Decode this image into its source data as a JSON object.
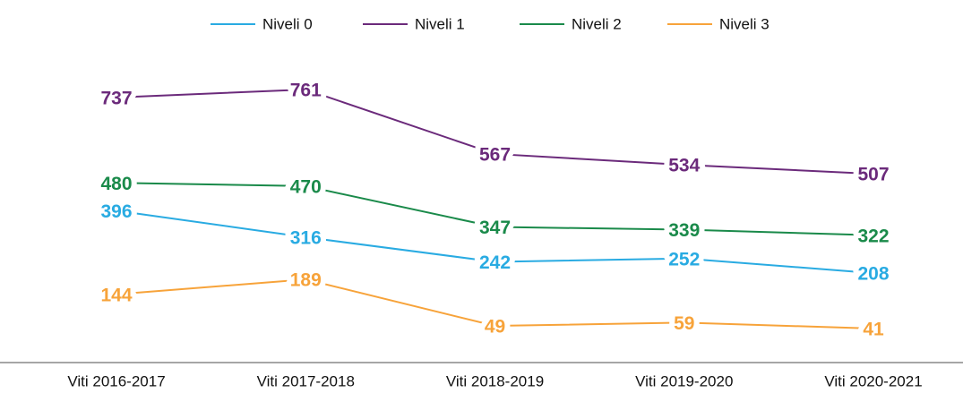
{
  "chart_data": {
    "type": "line",
    "categories": [
      "Viti 2016-2017",
      "Viti 2017-2018",
      "Viti 2018-2019",
      "Viti 2019-2020",
      "Viti 2020-2021"
    ],
    "series": [
      {
        "name": "Niveli 0",
        "color": "#29abe2",
        "values": [
          396,
          316,
          242,
          252,
          208
        ]
      },
      {
        "name": "Niveli 1",
        "color": "#6b2a7b",
        "values": [
          737,
          761,
          567,
          534,
          507
        ]
      },
      {
        "name": "Niveli 2",
        "color": "#1a8a4a",
        "values": [
          480,
          470,
          347,
          339,
          322
        ]
      },
      {
        "name": "Niveli 3",
        "color": "#f7a33a",
        "values": [
          144,
          189,
          49,
          59,
          41
        ]
      }
    ],
    "legend": "top"
  }
}
